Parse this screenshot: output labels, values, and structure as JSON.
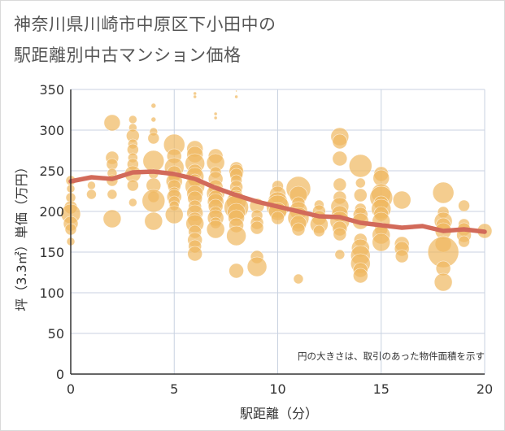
{
  "chart_data": {
    "type": "scatter",
    "title_line1": "神奈川県川崎市中原区下小田中の",
    "title_line2": "駅距離別中古マンション価格",
    "xlabel": "駅距離（分）",
    "ylabel": "坪（3.3㎡）単価（万円）",
    "note": "円の大きさは、取引のあった物件面積を示す",
    "xlim": [
      0,
      20
    ],
    "ylim": [
      0,
      350
    ],
    "xticks": [
      "0",
      "5",
      "10",
      "15",
      "20"
    ],
    "yticks": [
      "0",
      "50",
      "100",
      "150",
      "200",
      "250",
      "300",
      "350"
    ],
    "xtick_values": [
      0,
      5,
      10,
      15,
      20
    ],
    "ytick_values": [
      0,
      50,
      100,
      150,
      200,
      250,
      300,
      350
    ],
    "colors": {
      "bubble": "#f0b860",
      "trend": "#d26a5a",
      "grid": "#c8d2e0",
      "axis": "#333333"
    },
    "points": [
      [
        0,
        238,
        6
      ],
      [
        0,
        228,
        5
      ],
      [
        0,
        217,
        6
      ],
      [
        0,
        205,
        8
      ],
      [
        0,
        197,
        12
      ],
      [
        0,
        185,
        9
      ],
      [
        0,
        178,
        7
      ],
      [
        0,
        163,
        5
      ],
      [
        1,
        232,
        5
      ],
      [
        1,
        221,
        6
      ],
      [
        2,
        309,
        10
      ],
      [
        2,
        266,
        8
      ],
      [
        2,
        258,
        7
      ],
      [
        2,
        247,
        6
      ],
      [
        2,
        238,
        7
      ],
      [
        2,
        221,
        6
      ],
      [
        2,
        191,
        11
      ],
      [
        3,
        313,
        5
      ],
      [
        3,
        303,
        5
      ],
      [
        3,
        293,
        8
      ],
      [
        3,
        283,
        6
      ],
      [
        3,
        276,
        7
      ],
      [
        3,
        266,
        6
      ],
      [
        3,
        258,
        7
      ],
      [
        3,
        246,
        10
      ],
      [
        3,
        232,
        7
      ],
      [
        3,
        211,
        5
      ],
      [
        4,
        330,
        3
      ],
      [
        4,
        313,
        3
      ],
      [
        4,
        298,
        5
      ],
      [
        4,
        290,
        7
      ],
      [
        4,
        262,
        13
      ],
      [
        4,
        246,
        6
      ],
      [
        4,
        232,
        9
      ],
      [
        4,
        218,
        7
      ],
      [
        4,
        213,
        14
      ],
      [
        4,
        188,
        11
      ],
      [
        5,
        282,
        13
      ],
      [
        5,
        268,
        9
      ],
      [
        5,
        254,
        12
      ],
      [
        5,
        247,
        9
      ],
      [
        5,
        242,
        7
      ],
      [
        5,
        237,
        10
      ],
      [
        5,
        231,
        8
      ],
      [
        5,
        223,
        7
      ],
      [
        5,
        218,
        9
      ],
      [
        5,
        212,
        7
      ],
      [
        5,
        207,
        6
      ],
      [
        5,
        196,
        11
      ],
      [
        6,
        345,
        2
      ],
      [
        6,
        341,
        2
      ],
      [
        6,
        277,
        10
      ],
      [
        6,
        270,
        10
      ],
      [
        6,
        259,
        12
      ],
      [
        6,
        249,
        9
      ],
      [
        6,
        243,
        11
      ],
      [
        6,
        238,
        8
      ],
      [
        6,
        231,
        12
      ],
      [
        6,
        222,
        10
      ],
      [
        6,
        216,
        9
      ],
      [
        6,
        206,
        8
      ],
      [
        6,
        198,
        10
      ],
      [
        6,
        190,
        9
      ],
      [
        6,
        185,
        11
      ],
      [
        6,
        175,
        8
      ],
      [
        6,
        165,
        9
      ],
      [
        6,
        157,
        8
      ],
      [
        6,
        148,
        9
      ],
      [
        7,
        320,
        2
      ],
      [
        7,
        315,
        2
      ],
      [
        7,
        268,
        9
      ],
      [
        7,
        260,
        11
      ],
      [
        7,
        248,
        7
      ],
      [
        7,
        240,
        9
      ],
      [
        7,
        230,
        9
      ],
      [
        7,
        222,
        11
      ],
      [
        7,
        217,
        9
      ],
      [
        7,
        212,
        10
      ],
      [
        7,
        206,
        9
      ],
      [
        7,
        198,
        8
      ],
      [
        7,
        192,
        10
      ],
      [
        7,
        186,
        7
      ],
      [
        7,
        178,
        11
      ],
      [
        8,
        348,
        1
      ],
      [
        8,
        341,
        2
      ],
      [
        8,
        253,
        8
      ],
      [
        8,
        249,
        9
      ],
      [
        8,
        245,
        8
      ],
      [
        8,
        238,
        7
      ],
      [
        8,
        230,
        8
      ],
      [
        8,
        224,
        7
      ],
      [
        8,
        217,
        9
      ],
      [
        8,
        212,
        12
      ],
      [
        8,
        205,
        15
      ],
      [
        8,
        199,
        11
      ],
      [
        8,
        192,
        10
      ],
      [
        8,
        183,
        9
      ],
      [
        8,
        170,
        12
      ],
      [
        8,
        127,
        9
      ],
      [
        9,
        207,
        9
      ],
      [
        9,
        195,
        7
      ],
      [
        9,
        186,
        8
      ],
      [
        9,
        180,
        8
      ],
      [
        9,
        144,
        8
      ],
      [
        9,
        132,
        12
      ],
      [
        10,
        231,
        7
      ],
      [
        10,
        221,
        10
      ],
      [
        10,
        212,
        12
      ],
      [
        10,
        206,
        14
      ],
      [
        10,
        200,
        11
      ],
      [
        10,
        192,
        8
      ],
      [
        11,
        228,
        15
      ],
      [
        11,
        220,
        11
      ],
      [
        11,
        210,
        8
      ],
      [
        11,
        201,
        11
      ],
      [
        11,
        192,
        13
      ],
      [
        11,
        185,
        10
      ],
      [
        11,
        178,
        8
      ],
      [
        11,
        117,
        6
      ],
      [
        12,
        208,
        6
      ],
      [
        12,
        200,
        8
      ],
      [
        12,
        192,
        9
      ],
      [
        12,
        184,
        11
      ],
      [
        12,
        176,
        7
      ],
      [
        13,
        292,
        11
      ],
      [
        13,
        286,
        9
      ],
      [
        13,
        265,
        9
      ],
      [
        13,
        233,
        8
      ],
      [
        13,
        217,
        8
      ],
      [
        13,
        206,
        11
      ],
      [
        13,
        197,
        10
      ],
      [
        13,
        188,
        12
      ],
      [
        13,
        179,
        9
      ],
      [
        13,
        172,
        8
      ],
      [
        13,
        147,
        6
      ],
      [
        14,
        256,
        14
      ],
      [
        14,
        235,
        6
      ],
      [
        14,
        220,
        8
      ],
      [
        14,
        203,
        7
      ],
      [
        14,
        196,
        9
      ],
      [
        14,
        188,
        10
      ],
      [
        14,
        165,
        8
      ],
      [
        14,
        155,
        11
      ],
      [
        14,
        146,
        12
      ],
      [
        14,
        136,
        12
      ],
      [
        14,
        128,
        9
      ],
      [
        14,
        121,
        9
      ],
      [
        15,
        246,
        9
      ],
      [
        15,
        241,
        10
      ],
      [
        15,
        222,
        12
      ],
      [
        15,
        217,
        14
      ],
      [
        15,
        210,
        9
      ],
      [
        15,
        203,
        12
      ],
      [
        15,
        197,
        9
      ],
      [
        15,
        188,
        11
      ],
      [
        15,
        178,
        8
      ],
      [
        15,
        171,
        11
      ],
      [
        15,
        162,
        11
      ],
      [
        16,
        214,
        11
      ],
      [
        16,
        160,
        9
      ],
      [
        16,
        154,
        9
      ],
      [
        16,
        145,
        8
      ],
      [
        18,
        223,
        13
      ],
      [
        18,
        199,
        7
      ],
      [
        18,
        188,
        11
      ],
      [
        18,
        183,
        9
      ],
      [
        18,
        176,
        10
      ],
      [
        18,
        160,
        10
      ],
      [
        18,
        150,
        19
      ],
      [
        18,
        130,
        9
      ],
      [
        18,
        113,
        11
      ],
      [
        19,
        207,
        7
      ],
      [
        19,
        184,
        7
      ],
      [
        19,
        178,
        8
      ],
      [
        19,
        171,
        9
      ],
      [
        19,
        163,
        7
      ],
      [
        20,
        176,
        9
      ]
    ],
    "trend": [
      [
        0,
        237
      ],
      [
        1,
        242
      ],
      [
        2,
        240
      ],
      [
        3,
        248
      ],
      [
        4,
        249
      ],
      [
        5,
        246
      ],
      [
        6,
        240
      ],
      [
        7,
        229
      ],
      [
        8,
        220
      ],
      [
        9,
        212
      ],
      [
        10,
        206
      ],
      [
        11,
        200
      ],
      [
        12,
        194
      ],
      [
        13,
        193
      ],
      [
        14,
        186
      ],
      [
        15,
        183
      ],
      [
        16,
        180
      ],
      [
        17,
        182
      ],
      [
        18,
        176
      ],
      [
        19,
        178
      ],
      [
        20,
        175
      ]
    ]
  }
}
